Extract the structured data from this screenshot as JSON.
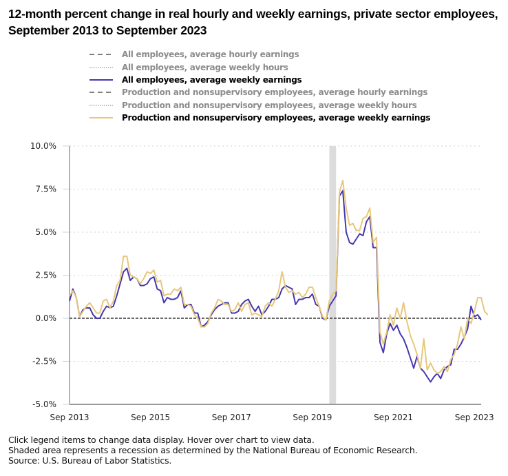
{
  "title": "12-month percent change in real hourly and weekly earnings, private sector employees, September 2013 to September 2023",
  "legend": [
    {
      "label": "All employees, average hourly earnings",
      "style": "dashed",
      "color": "#7f7f7f",
      "active": false
    },
    {
      "label": "All employees, average weekly hours",
      "style": "dotted",
      "color": "#9a9a9a",
      "active": false
    },
    {
      "label": "All employees, average weekly earnings",
      "style": "solid",
      "color": "#4536b0",
      "active": true
    },
    {
      "label": "Production and nonsupervisory employees, average hourly earnings",
      "style": "dashed",
      "color": "#7f7f7f",
      "active": false
    },
    {
      "label": "Production and nonsupervisory employees, average weekly hours",
      "style": "dotted",
      "color": "#9a9a9a",
      "active": false
    },
    {
      "label": "Production and nonsupervisory employees, average weekly earnings",
      "style": "solid",
      "color": "#e8c77a",
      "active": true
    }
  ],
  "notes": [
    "Click legend items to change data display. Hover over chart to view data.",
    "Shaded area represents a recession as determined by the National Bureau of Economic Research.",
    "Source: U.S. Bureau of Labor Statistics."
  ],
  "chart_data": {
    "type": "line",
    "title": "12-month percent change in real hourly and weekly earnings, private sector employees, September 2013 to September 2023",
    "xlabel": "",
    "ylabel": "",
    "x_start": "Sep 2013",
    "x_end": "Sep 2023",
    "x_frequency": "monthly",
    "x_ticks": [
      "Sep 2013",
      "Sep 2015",
      "Sep 2017",
      "Sep 2019",
      "Sep 2021",
      "Sep 2023"
    ],
    "y_ticks": [
      "10.0%",
      "7.5%",
      "5.0%",
      "2.5%",
      "0.0%",
      "-2.5%",
      "-5.0%"
    ],
    "ylim": [
      -5,
      10
    ],
    "grid": "horizontal dotted",
    "zero_line": true,
    "recession": {
      "start": "Feb 2020",
      "end": "Apr 2020"
    },
    "legend_position": "top",
    "series": [
      {
        "name": "All employees, average weekly earnings",
        "color": "#4536b0",
        "values": [
          1.0,
          1.7,
          1.2,
          0.1,
          0.5,
          0.6,
          0.6,
          0.2,
          0.0,
          0.0,
          0.4,
          0.7,
          0.6,
          0.7,
          1.3,
          2.0,
          2.7,
          2.9,
          2.2,
          2.4,
          2.3,
          1.9,
          1.9,
          2.0,
          2.3,
          2.4,
          1.7,
          1.6,
          0.9,
          1.2,
          1.1,
          1.1,
          1.2,
          1.6,
          0.6,
          0.8,
          0.8,
          0.3,
          0.3,
          -0.5,
          -0.4,
          -0.2,
          0.2,
          0.5,
          0.7,
          0.8,
          0.9,
          0.9,
          0.3,
          0.3,
          0.4,
          0.8,
          1.0,
          1.1,
          0.7,
          0.4,
          0.7,
          0.2,
          0.4,
          0.7,
          1.1,
          1.1,
          1.2,
          1.7,
          1.9,
          1.8,
          1.7,
          0.8,
          1.1,
          1.1,
          1.2,
          1.2,
          1.4,
          0.8,
          0.7,
          0.0,
          -0.1,
          0.7,
          1.0,
          1.3,
          7.1,
          7.4,
          5.0,
          4.4,
          4.3,
          4.6,
          4.9,
          4.8,
          5.6,
          5.9,
          4.1,
          4.1,
          -1.4,
          -2.0,
          -0.9,
          -0.3,
          -0.7,
          -0.4,
          -0.9,
          -1.2,
          -1.7,
          -2.3,
          -2.9,
          -2.2,
          -2.9,
          -3.1,
          -3.4,
          -3.7,
          -3.4,
          -3.2,
          -3.5,
          -3.0,
          -2.8,
          -2.7,
          -1.8,
          -1.8,
          -1.5,
          -1.1,
          -0.6,
          0.7,
          0.1,
          0.2,
          -0.1
        ]
      },
      {
        "name": "Production and nonsupervisory employees, average weekly earnings",
        "color": "#e8c77a",
        "values": [
          1.3,
          1.6,
          1.2,
          0.1,
          0.4,
          0.7,
          0.9,
          0.6,
          0.3,
          0.3,
          1.0,
          1.1,
          0.6,
          1.0,
          1.9,
          2.2,
          3.6,
          3.6,
          2.5,
          2.4,
          2.3,
          2.0,
          2.3,
          2.7,
          2.6,
          2.8,
          2.1,
          2.2,
          1.3,
          1.4,
          1.4,
          1.7,
          1.6,
          1.8,
          0.8,
          0.8,
          0.7,
          0.2,
          0.0,
          -0.5,
          -0.5,
          -0.3,
          0.3,
          0.6,
          1.1,
          1.0,
          0.8,
          0.8,
          0.4,
          0.5,
          0.9,
          0.4,
          0.8,
          0.9,
          0.2,
          0.3,
          0.2,
          0.1,
          0.7,
          0.9,
          0.7,
          1.1,
          1.6,
          2.7,
          1.8,
          1.5,
          1.6,
          1.4,
          1.5,
          1.2,
          1.4,
          1.8,
          1.8,
          1.2,
          0.7,
          0.1,
          -0.1,
          1.0,
          1.4,
          1.6,
          7.3,
          8.0,
          6.4,
          5.4,
          5.5,
          5.1,
          5.1,
          5.8,
          5.9,
          6.4,
          4.4,
          4.7,
          -0.8,
          -1.5,
          -0.8,
          0.2,
          -0.4,
          0.6,
          0.0,
          0.9,
          -0.2,
          -1.0,
          -1.5,
          -2.1,
          -2.9,
          -1.2,
          -3.0,
          -2.6,
          -3.0,
          -3.2,
          -3.1,
          -2.8,
          -3.1,
          -2.4,
          -2.1,
          -1.5,
          -0.5,
          -1.2,
          0.0,
          -0.3,
          0.4,
          1.2,
          1.2,
          0.4,
          0.2
        ]
      }
    ]
  }
}
